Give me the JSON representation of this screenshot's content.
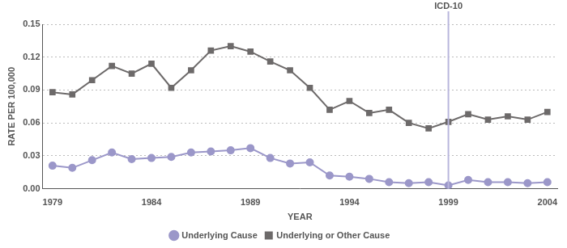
{
  "chart_data": {
    "type": "line",
    "x_label": "YEAR",
    "y_label": "RATE PER 100,000",
    "x": [
      1979,
      1980,
      1981,
      1982,
      1983,
      1984,
      1985,
      1986,
      1987,
      1988,
      1989,
      1990,
      1991,
      1992,
      1993,
      1994,
      1995,
      1996,
      1997,
      1998,
      1999,
      2000,
      2001,
      2002,
      2003,
      2004
    ],
    "series": [
      {
        "name": "Underlying Cause",
        "color": "#9b97c9",
        "marker": "circle",
        "values": [
          0.021,
          0.019,
          0.026,
          0.033,
          0.027,
          0.028,
          0.029,
          0.033,
          0.034,
          0.035,
          0.037,
          0.028,
          0.023,
          0.024,
          0.012,
          0.011,
          0.009,
          0.006,
          0.005,
          0.006,
          0.003,
          0.008,
          0.006,
          0.006,
          0.005,
          0.006
        ]
      },
      {
        "name": "Underlying or Other Cause",
        "color": "#6d6a6a",
        "marker": "square",
        "values": [
          0.088,
          0.086,
          0.099,
          0.112,
          0.105,
          0.114,
          0.092,
          0.108,
          0.126,
          0.13,
          0.125,
          0.116,
          0.108,
          0.092,
          0.072,
          0.08,
          0.069,
          0.072,
          0.06,
          0.055,
          0.061,
          0.068,
          0.063,
          0.066,
          0.063,
          0.07
        ]
      }
    ],
    "xlim": [
      1978.5,
      2004.5
    ],
    "xticks": [
      1979,
      1984,
      1989,
      1994,
      1999,
      2004
    ],
    "ylim": [
      0,
      0.15
    ],
    "yticks": [
      {
        "value": 0,
        "label": "0.00"
      },
      0.03,
      0.06,
      0.09,
      0.12,
      0.15
    ],
    "annotations": [
      {
        "x": 1999,
        "text": "ICD-10"
      }
    ],
    "grid": true,
    "legend": "bottom"
  }
}
